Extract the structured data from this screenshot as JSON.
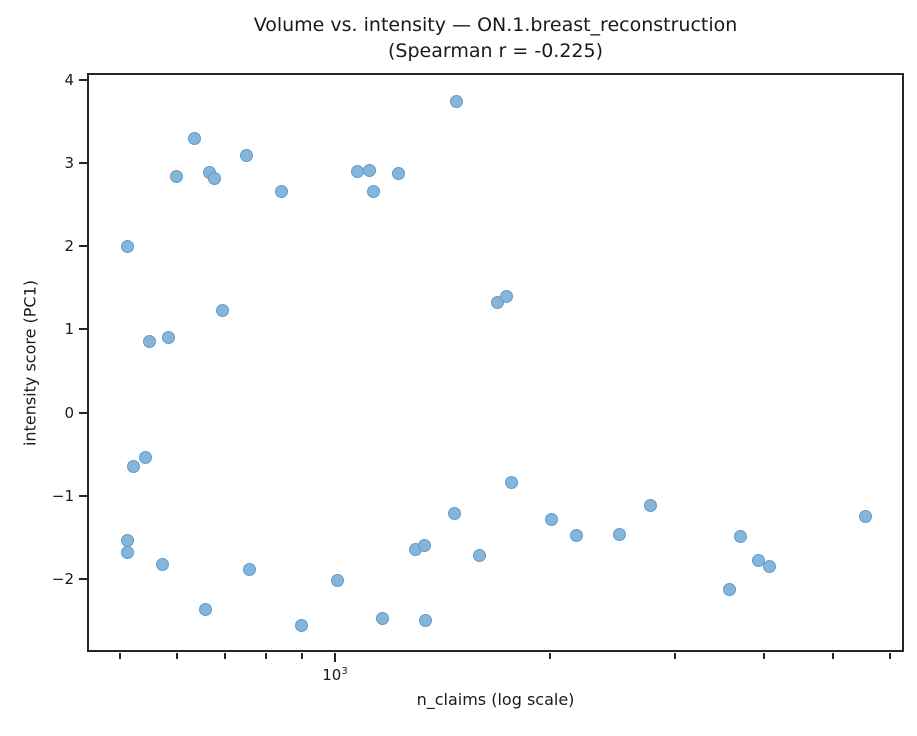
{
  "title": {
    "line1": "Volume vs. intensity — ON.1.breast_reconstruction",
    "line2": "(Spearman r = -0.225)"
  },
  "axes": {
    "xlabel": "n_claims (log scale)",
    "ylabel": "intensity score (PC1)",
    "x_scale": "log",
    "x_major_tick_base": "10",
    "x_major_tick_exponent": "3",
    "x_major_ticks": [
      1000
    ],
    "x_minor_ticks": [
      500,
      600,
      700,
      800,
      900,
      2000,
      3000,
      4000,
      5000,
      6000
    ],
    "y_ticks": [
      4,
      3,
      2,
      1,
      0,
      -1,
      -2
    ],
    "y_tick_labels": [
      "4",
      "3",
      "2",
      "1",
      "0",
      "−1",
      "−2"
    ]
  },
  "colors": {
    "marker_fill": "#85b5d9",
    "marker_edge": "#609cce",
    "axis": "#262626",
    "background": "#ffffff"
  },
  "chart_data": {
    "type": "scatter",
    "title": "Volume vs. intensity — ON.1.breast_reconstruction (Spearman r = -0.225)",
    "spearman_r": -0.225,
    "xlabel": "n_claims (log scale)",
    "ylabel": "intensity score (PC1)",
    "x_scale": "log",
    "xlim": [
      451,
      6250
    ],
    "ylim": [
      -2.86,
      4.07
    ],
    "grid": false,
    "legend": false,
    "marker_diameter_px": 13,
    "points": [
      [
        636,
        3.29
      ],
      [
        751,
        3.09
      ],
      [
        1480,
        3.74
      ],
      [
        599,
        2.84
      ],
      [
        667,
        2.88
      ],
      [
        677,
        2.81
      ],
      [
        841,
        2.65
      ],
      [
        1077,
        2.9
      ],
      [
        1119,
        2.91
      ],
      [
        1226,
        2.87
      ],
      [
        1134,
        2.66
      ],
      [
        511,
        2.0
      ],
      [
        696,
        1.23
      ],
      [
        550,
        0.85
      ],
      [
        585,
        0.9
      ],
      [
        1690,
        1.32
      ],
      [
        1740,
        1.39
      ],
      [
        521,
        -0.64
      ],
      [
        542,
        -0.54
      ],
      [
        511,
        -1.54
      ],
      [
        512,
        -1.68
      ],
      [
        573,
        -1.82
      ],
      [
        759,
        -1.88
      ],
      [
        1008,
        -2.02
      ],
      [
        659,
        -2.36
      ],
      [
        897,
        -2.56
      ],
      [
        1166,
        -2.47
      ],
      [
        1339,
        -2.49
      ],
      [
        1298,
        -1.64
      ],
      [
        1336,
        -1.6
      ],
      [
        1469,
        -1.21
      ],
      [
        1594,
        -1.72
      ],
      [
        1770,
        -0.84
      ],
      [
        2010,
        -1.28
      ],
      [
        2180,
        -1.47
      ],
      [
        2510,
        -1.46
      ],
      [
        2770,
        -1.11
      ],
      [
        3700,
        -1.49
      ],
      [
        3930,
        -1.77
      ],
      [
        4070,
        -1.85
      ],
      [
        3570,
        -2.12
      ],
      [
        5540,
        -1.25
      ]
    ]
  }
}
